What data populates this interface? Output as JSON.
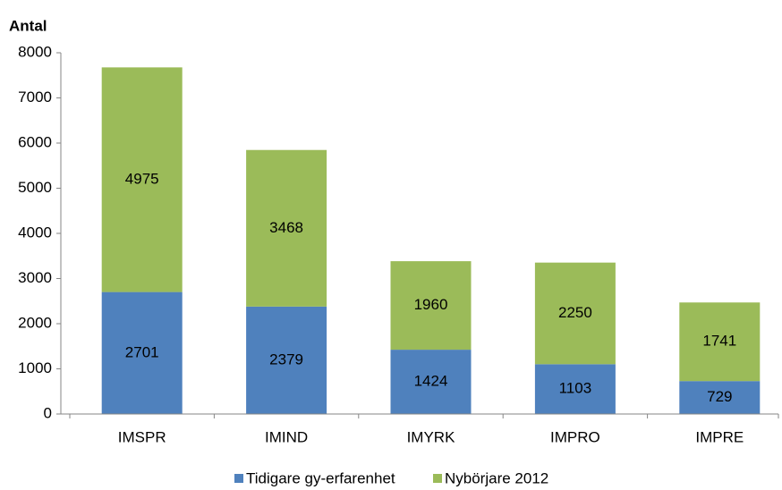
{
  "chart_data": {
    "type": "stacked_bar",
    "y_axis_label": "Antal",
    "categories": [
      "IMSPR",
      "IMIND",
      "IMYRK",
      "IMPRO",
      "IMPRE"
    ],
    "series": [
      {
        "name": "Tidigare gy-erfarenhet",
        "color": "#4f81bd",
        "label_color": "#ffffff",
        "values": [
          2701,
          2379,
          1424,
          1103,
          729
        ]
      },
      {
        "name": "Nybörjare 2012",
        "color": "#9bbb59",
        "label_color": "#000000",
        "values": [
          4975,
          3468,
          1960,
          2250,
          1741
        ]
      }
    ],
    "ylim": [
      0,
      8000
    ],
    "yticks": [
      0,
      1000,
      2000,
      3000,
      4000,
      5000,
      6000,
      7000,
      8000
    ],
    "grid": false,
    "legend": "bottom"
  }
}
